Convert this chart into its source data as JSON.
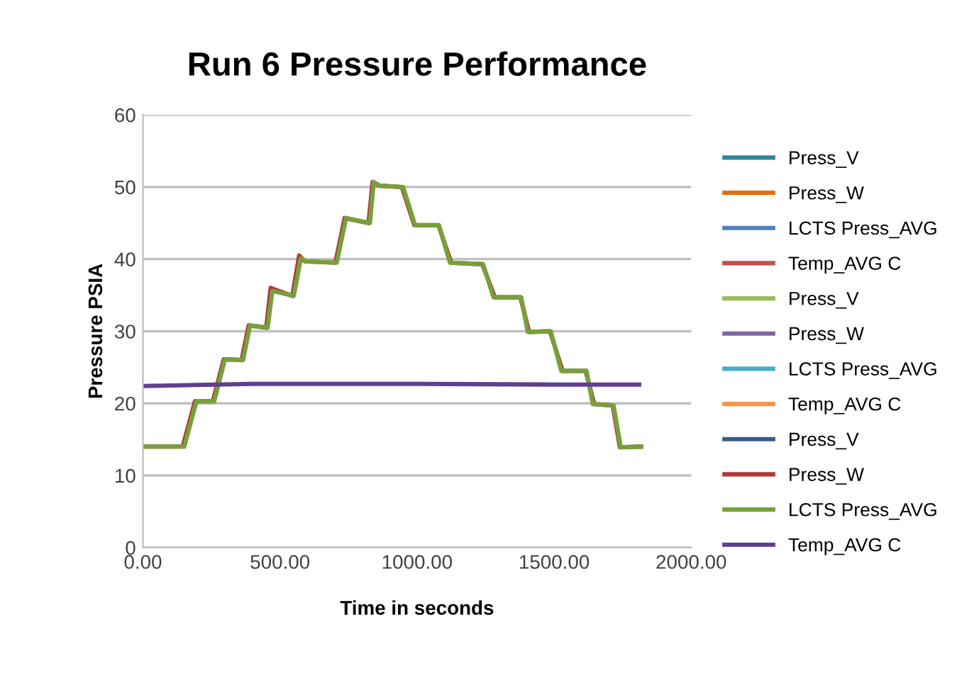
{
  "chart_data": {
    "type": "line",
    "title": "Run 6 Pressure Performance",
    "xlabel": "Time in seconds",
    "ylabel": "Pressure PSIA",
    "xlim": [
      0,
      2000
    ],
    "xticks": [
      {
        "value": 0,
        "label": "0.00"
      },
      {
        "value": 500,
        "label": "500.00"
      },
      {
        "value": 1000,
        "label": "1000.00"
      },
      {
        "value": 1500,
        "label": "1500.00"
      },
      {
        "value": 2000,
        "label": "2000.00"
      }
    ],
    "ylim": [
      0,
      60
    ],
    "yticks": [
      0,
      10,
      20,
      30,
      40,
      50,
      60
    ],
    "grid": "y",
    "legend": "right",
    "marker": "none",
    "line_style": "solid",
    "series": [
      {
        "name": "Press_V",
        "color": "#31849b",
        "values": [
          null,
          null
        ]
      },
      {
        "name": "Press_W",
        "color": "#e46c0a",
        "values": [
          null,
          null
        ]
      },
      {
        "name": "LCTS Press_AVG",
        "color": "#4f81bd",
        "values": [
          null,
          null
        ]
      },
      {
        "name": "Temp_AVG C",
        "color": "#c0504d",
        "values": [
          null,
          null
        ]
      },
      {
        "name": "Press_V",
        "color": "#9bbb59",
        "values": [
          null,
          null
        ]
      },
      {
        "name": "Press_W",
        "color": "#8064a2",
        "values": [
          null,
          null
        ]
      },
      {
        "name": "LCTS Press_AVG",
        "color": "#4bacc6",
        "values": [
          null,
          null
        ]
      },
      {
        "name": "Temp_AVG C",
        "color": "#f79646",
        "values": [
          null,
          null
        ]
      },
      {
        "name": "Press_V",
        "color": "#385d8a",
        "values": [
          null,
          null
        ]
      },
      {
        "name": "Press_W",
        "color": "#b03a36",
        "x": [
          0,
          145,
          190,
          255,
          295,
          360,
          386,
          450,
          466,
          545,
          570,
          590,
          702,
          736,
          823,
          838,
          860,
          945,
          990,
          1078,
          1125,
          1238,
          1284,
          1377,
          1409,
          1485,
          1531,
          1615,
          1646,
          1714,
          1740,
          1818
        ],
        "values": [
          14,
          14,
          20.3,
          20.3,
          26.1,
          26,
          30.8,
          30.5,
          36,
          34.9,
          40.5,
          39.7,
          39.5,
          45.7,
          45,
          50.7,
          50.2,
          50,
          44.7,
          44.7,
          39.5,
          39.3,
          34.7,
          34.7,
          29.9,
          30,
          24.5,
          24.5,
          19.9,
          19.7,
          13.9,
          14
        ]
      },
      {
        "name": "LCTS Press_AVG",
        "color": "#77a03c",
        "x": [
          0,
          151,
          195,
          260,
          299,
          365,
          391,
          455,
          472,
          550,
          576,
          594,
          707,
          741,
          828,
          842,
          863,
          949,
          993,
          1080,
          1120,
          1241,
          1279,
          1380,
          1404,
          1488,
          1526,
          1618,
          1641,
          1717,
          1743,
          1818
        ],
        "values": [
          14,
          14,
          20.3,
          20.3,
          26.1,
          26,
          30.8,
          30.5,
          35.6,
          34.9,
          40.1,
          39.7,
          39.5,
          45.7,
          45,
          50.7,
          50.2,
          50,
          44.7,
          44.7,
          39.5,
          39.3,
          34.7,
          34.7,
          29.9,
          30,
          24.5,
          24.5,
          19.9,
          19.7,
          13.9,
          14
        ]
      },
      {
        "name": "Temp_AVG C",
        "color": "#5f3f8f",
        "x": [
          0,
          400,
          1000,
          1500,
          1810
        ],
        "values": [
          22.4,
          22.7,
          22.7,
          22.6,
          22.6
        ]
      }
    ]
  }
}
